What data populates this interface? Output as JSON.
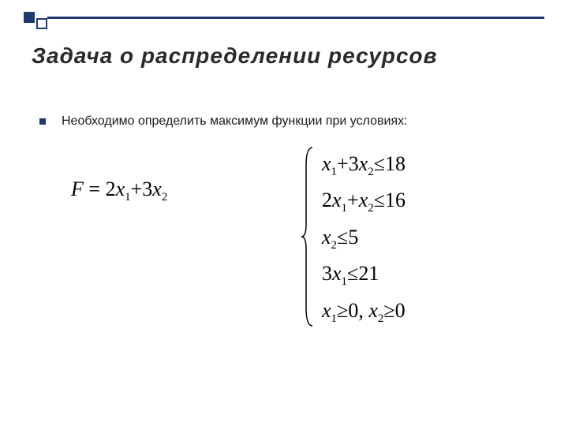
{
  "decoration": {
    "accent_color": "#1f3a6e",
    "square_size": 14
  },
  "title": "Задача  о  распределении  ресурсов",
  "bullet": {
    "text": "Необходимо определить максимум функции  при условиях:"
  },
  "objective": {
    "lhs": "F",
    "eq": "=",
    "terms": [
      {
        "coef": "2",
        "var": "x",
        "sub": "1"
      },
      {
        "op": "+",
        "coef": "3",
        "var": "x",
        "sub": "2"
      }
    ]
  },
  "constraints": [
    {
      "parts": [
        {
          "var": "x",
          "sub": "1"
        },
        {
          "op": "+"
        },
        {
          "coef": "3",
          "var": "x",
          "sub": "2"
        },
        {
          "rel": "≤"
        },
        {
          "num": "18"
        }
      ]
    },
    {
      "parts": [
        {
          "coef": "2",
          "var": "x",
          "sub": "1"
        },
        {
          "op": "+"
        },
        {
          "var": "x",
          "sub": "2"
        },
        {
          "rel": "≤"
        },
        {
          "num": "16"
        }
      ]
    },
    {
      "parts": [
        {
          "var": "x",
          "sub": "2"
        },
        {
          "rel": "≤"
        },
        {
          "num": "5"
        }
      ]
    },
    {
      "parts": [
        {
          "coef": "3",
          "var": "x",
          "sub": "1"
        },
        {
          "rel": "≤"
        },
        {
          "num": "21"
        }
      ]
    },
    {
      "parts": [
        {
          "var": "x",
          "sub": "1"
        },
        {
          "rel": "≥"
        },
        {
          "num": "0"
        },
        {
          "op": ", "
        },
        {
          "var": "x",
          "sub": "2"
        },
        {
          "rel": "≥"
        },
        {
          "num": "0"
        }
      ]
    }
  ],
  "typography": {
    "title_fontsize": 28,
    "body_fontsize": 16,
    "math_fontsize": 26,
    "sub_fontsize": 15
  }
}
